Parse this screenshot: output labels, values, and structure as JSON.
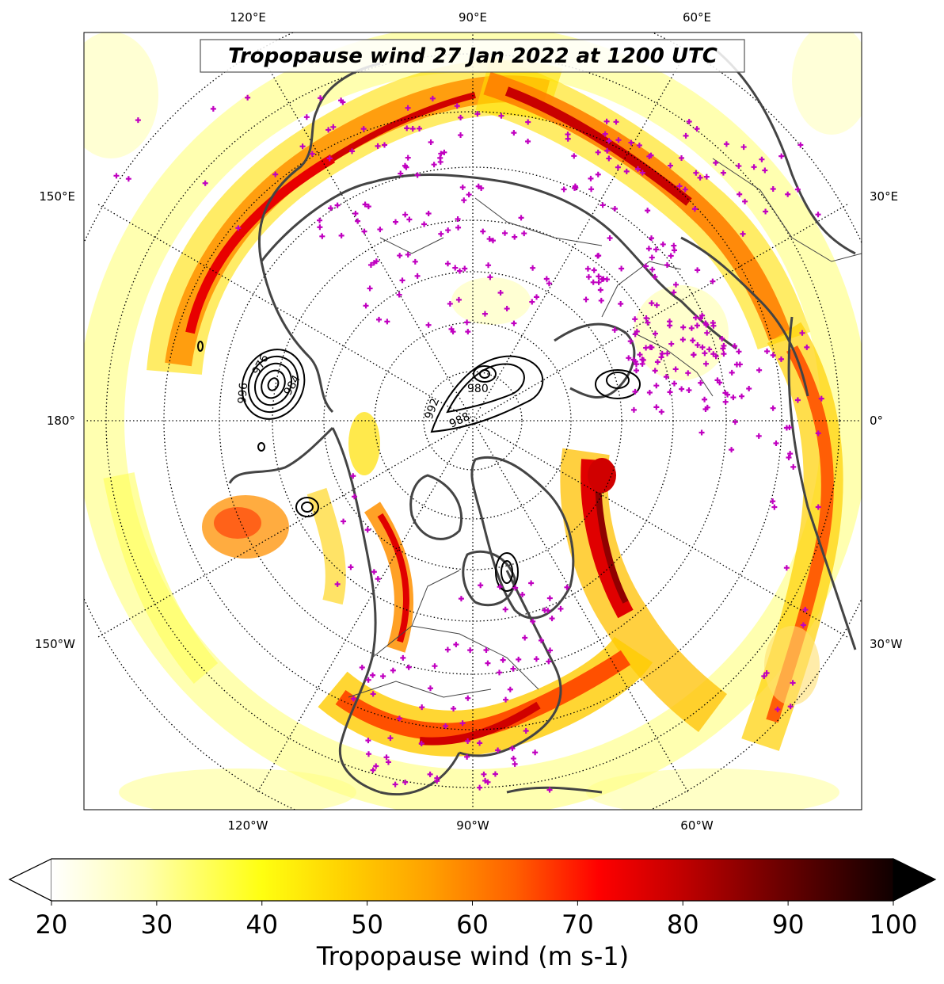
{
  "map": {
    "title": "Tropopause wind 27 Jan 2022 at 1200 UTC",
    "projection": "north-polar-stereographic",
    "lon_labels_top": [
      "120°E",
      "90°E",
      "60°E"
    ],
    "lon_labels_bottom": [
      "120°W",
      "90°W",
      "60°W"
    ],
    "lon_labels_left": [
      "150°E",
      "180°",
      "150°W"
    ],
    "lon_labels_right": [
      "30°E",
      "0°",
      "30°W"
    ],
    "contour_labels": [
      "976",
      "980",
      "984",
      "988",
      "992",
      "996"
    ],
    "station_marker_color": "#c000c0",
    "coastline_color": "#444444"
  },
  "colorbar": {
    "label": "Tropopause wind (m s-1)",
    "ticks": [
      "20",
      "30",
      "40",
      "50",
      "60",
      "70",
      "80",
      "90",
      "100"
    ],
    "min": 20,
    "max": 100,
    "extend": "both",
    "stops": [
      "#ffffff",
      "#ffff9a",
      "#ffff00",
      "#ffd200",
      "#ffa000",
      "#ff6a00",
      "#ff0000",
      "#b80000",
      "#6a0000",
      "#000000"
    ]
  }
}
